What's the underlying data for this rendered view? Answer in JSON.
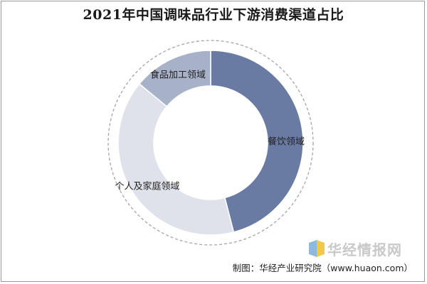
{
  "chart_data": {
    "type": "pie",
    "title": "2021年中国调味品行业下游消费渠道占比",
    "categories": [
      "餐饮领域",
      "个人及家庭领域",
      "食品加工领域"
    ],
    "values": [
      46,
      40,
      14
    ],
    "colors": [
      "#6a7ba3",
      "#dfe2eb",
      "#a7b1c7"
    ]
  },
  "credit": "制图：华经产业研究院（www.huaon.com）",
  "watermark": {
    "text": "华经情报网",
    "icon": "huajing-logo-icon"
  }
}
